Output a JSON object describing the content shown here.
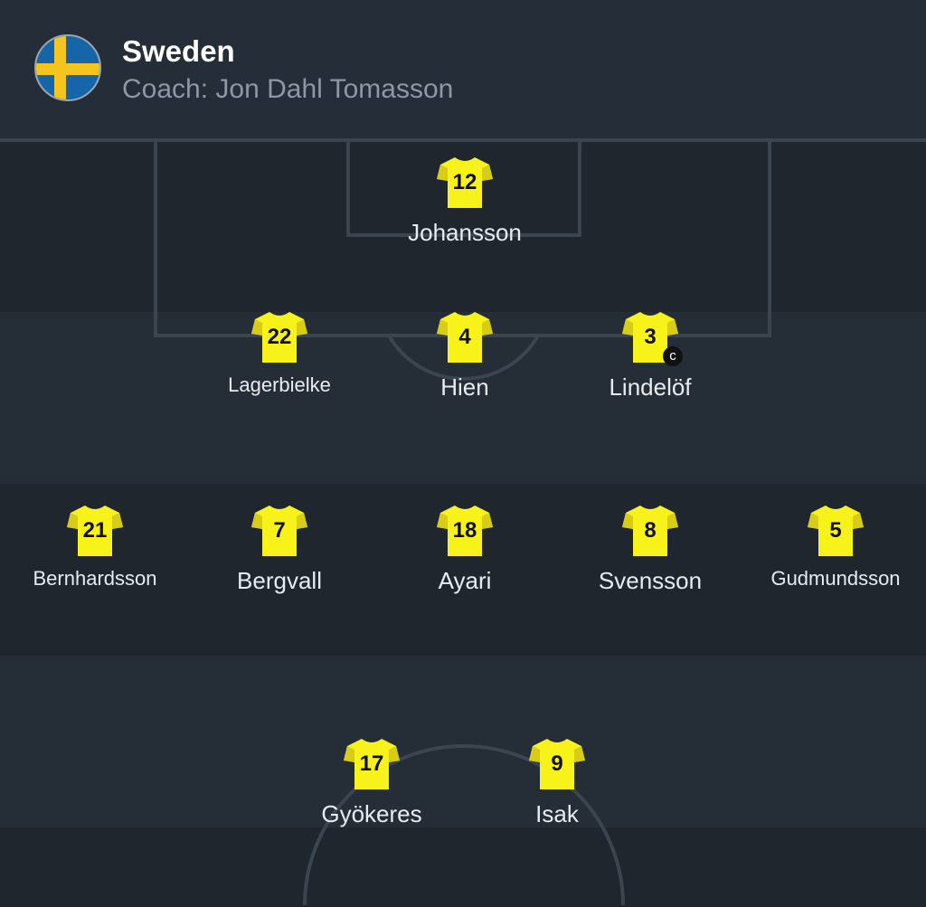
{
  "team": {
    "name": "Sweden",
    "coach": "Coach: Jon Dahl Tomasson",
    "flag_icon": "sweden-flag"
  },
  "colors": {
    "jersey": "#f7f21a",
    "jersey_sleeve": "#d8cc18",
    "pitch_dark": "#1f262e",
    "pitch_light": "#252d37",
    "lines": "#3a4550"
  },
  "lineup": [
    {
      "number": "12",
      "name": "Johansson",
      "row": "goalkeeper"
    },
    {
      "number": "22",
      "name": "Lagerbielke",
      "row": "defence"
    },
    {
      "number": "4",
      "name": "Hien",
      "row": "defence"
    },
    {
      "number": "3",
      "name": "Lindelöf",
      "row": "defence",
      "captain": "c"
    },
    {
      "number": "21",
      "name": "Bernhardsson",
      "row": "midfield"
    },
    {
      "number": "7",
      "name": "Bergvall",
      "row": "midfield"
    },
    {
      "number": "18",
      "name": "Ayari",
      "row": "midfield"
    },
    {
      "number": "8",
      "name": "Svensson",
      "row": "midfield"
    },
    {
      "number": "5",
      "name": "Gudmundsson",
      "row": "midfield"
    },
    {
      "number": "17",
      "name": "Gyökeres",
      "row": "attack"
    },
    {
      "number": "9",
      "name": "Isak",
      "row": "attack"
    }
  ]
}
